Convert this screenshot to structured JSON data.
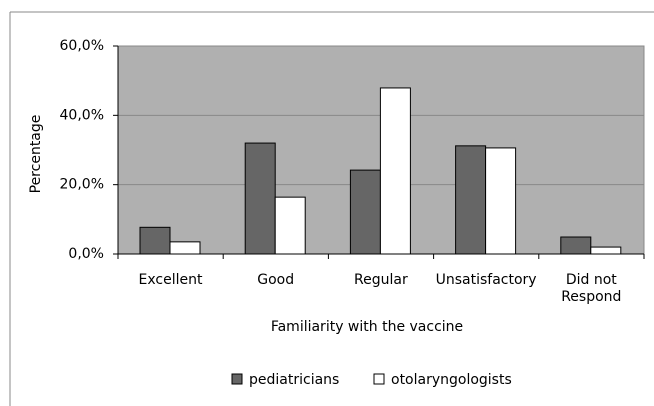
{
  "chart_data": {
    "type": "bar",
    "x_label": "Familiarity with the vaccine",
    "y_label": "Percentage",
    "categories": [
      "Excellent",
      "Good",
      "Regular",
      "Unsatisfactory",
      "Did not Respond"
    ],
    "series": [
      {
        "name": "pediatricians",
        "color": "#666666",
        "values": [
          7.7,
          32.0,
          24.2,
          31.2,
          4.9
        ]
      },
      {
        "name": "otolaryngologists",
        "color": "#ffffff",
        "values": [
          3.5,
          16.4,
          47.9,
          30.6,
          2.0
        ]
      }
    ],
    "ylim": [
      0,
      60
    ],
    "yticks": [
      {
        "value": 0,
        "label": "0,0%"
      },
      {
        "value": 20,
        "label": "20,0%"
      },
      {
        "value": 40,
        "label": "40,0%"
      },
      {
        "value": 60,
        "label": "60,0%"
      }
    ],
    "grid": true,
    "plot_background": "#b0b0b0",
    "legend": "bottom"
  }
}
